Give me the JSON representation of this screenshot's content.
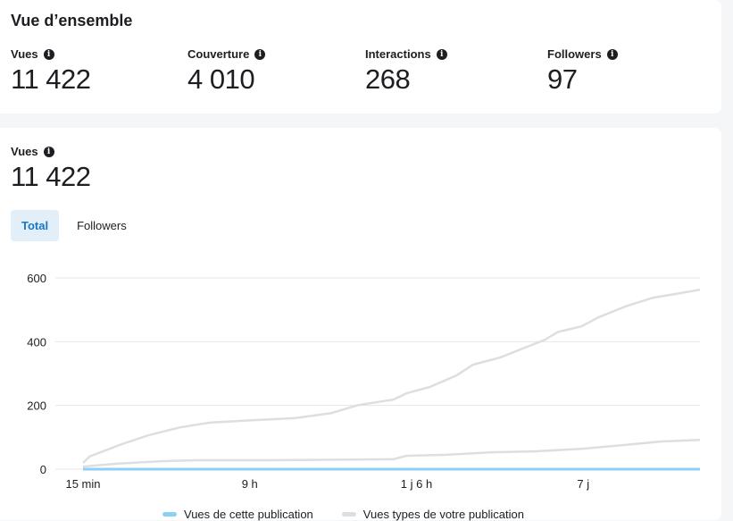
{
  "overview": {
    "title": "Vue d’ensemble",
    "metrics": [
      {
        "label": "Vues",
        "value": "11 422"
      },
      {
        "label": "Couverture",
        "value": "4 010"
      },
      {
        "label": "Interactions",
        "value": "268"
      },
      {
        "label": "Followers",
        "value": "97"
      }
    ]
  },
  "views": {
    "label": "Vues",
    "value": "11 422",
    "tabs": [
      {
        "label": "Total",
        "active": true
      },
      {
        "label": "Followers",
        "active": false
      }
    ]
  },
  "chart_data": {
    "type": "line",
    "ylim": [
      0,
      600
    ],
    "yticks": [
      0,
      200,
      400,
      600
    ],
    "xticks": [
      {
        "x": 0,
        "label": "15 min"
      },
      {
        "x": 1,
        "label": "9 h"
      },
      {
        "x": 2,
        "label": "1 j 6 h"
      },
      {
        "x": 3,
        "label": "7 j"
      }
    ],
    "xlim": [
      0,
      3.7
    ],
    "grid": true,
    "legend_position": "bottom",
    "series": [
      {
        "name": "Vues de cette publication",
        "color": "#8ecff5",
        "points": [
          [
            0,
            0
          ],
          [
            3.7,
            0
          ]
        ]
      },
      {
        "name": "Vues types de votre publication",
        "color": "#dcdee1",
        "points": [
          [
            0,
            20
          ],
          [
            0.04,
            40
          ],
          [
            0.23,
            78
          ],
          [
            0.39,
            106
          ],
          [
            0.58,
            131
          ],
          [
            0.76,
            146
          ],
          [
            1.0,
            153
          ],
          [
            1.27,
            160
          ],
          [
            1.49,
            176
          ],
          [
            1.65,
            201
          ],
          [
            1.86,
            218
          ],
          [
            1.94,
            238
          ],
          [
            2.08,
            258
          ],
          [
            2.24,
            294
          ],
          [
            2.34,
            328
          ],
          [
            2.5,
            350
          ],
          [
            2.61,
            373
          ],
          [
            2.77,
            406
          ],
          [
            2.85,
            431
          ],
          [
            2.99,
            448
          ],
          [
            3.09,
            476
          ],
          [
            3.25,
            510
          ],
          [
            3.42,
            538
          ],
          [
            3.58,
            552
          ],
          [
            3.7,
            563
          ]
        ]
      },
      {
        "name": "Vues types de votre publication (min)",
        "color": "#dcdee1",
        "points": [
          [
            0,
            8
          ],
          [
            0.2,
            17
          ],
          [
            0.47,
            25
          ],
          [
            0.68,
            28
          ],
          [
            1.11,
            28
          ],
          [
            1.86,
            31
          ],
          [
            1.94,
            42
          ],
          [
            2.18,
            45
          ],
          [
            2.45,
            53
          ],
          [
            2.72,
            56
          ],
          [
            2.99,
            64
          ],
          [
            3.25,
            76
          ],
          [
            3.47,
            87
          ],
          [
            3.7,
            92
          ]
        ]
      }
    ]
  }
}
